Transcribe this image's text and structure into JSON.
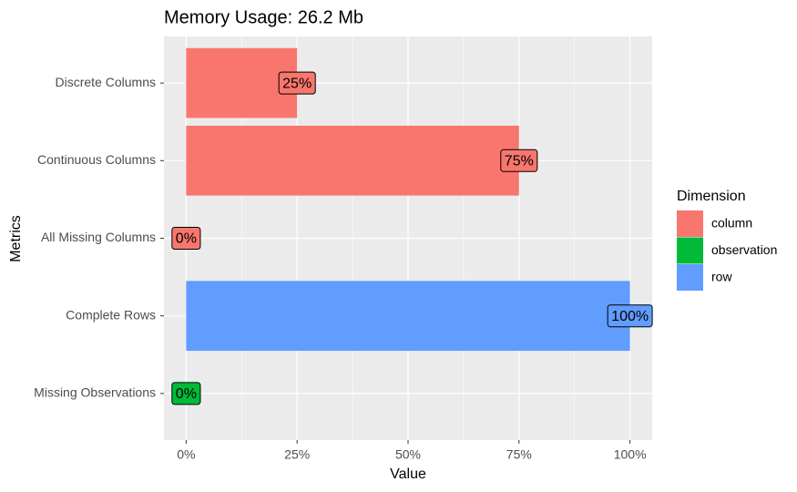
{
  "chart_data": {
    "type": "bar",
    "orientation": "horizontal",
    "title": "Memory Usage: 26.2 Mb",
    "x_label": "Value",
    "y_label": "Metrics",
    "categories": [
      "Discrete Columns",
      "Continuous Columns",
      "All Missing Columns",
      "Complete Rows",
      "Missing Observations"
    ],
    "values": [
      25,
      75,
      0,
      100,
      0
    ],
    "value_labels": [
      "25%",
      "75%",
      "0%",
      "100%",
      "0%"
    ],
    "groups": [
      "column",
      "column",
      "column",
      "row",
      "observation"
    ],
    "legend": {
      "title": "Dimension",
      "items": [
        {
          "name": "column",
          "color": "#F8766D"
        },
        {
          "name": "observation",
          "color": "#00BA38"
        },
        {
          "name": "row",
          "color": "#619CFF"
        }
      ]
    },
    "xlim": [
      -5,
      105
    ],
    "xticks": [
      {
        "value": 0,
        "label": "0%"
      },
      {
        "value": 25,
        "label": "25%"
      },
      {
        "value": 50,
        "label": "50%"
      },
      {
        "value": 75,
        "label": "75%"
      },
      {
        "value": 100,
        "label": "100%"
      }
    ],
    "grid": true
  }
}
